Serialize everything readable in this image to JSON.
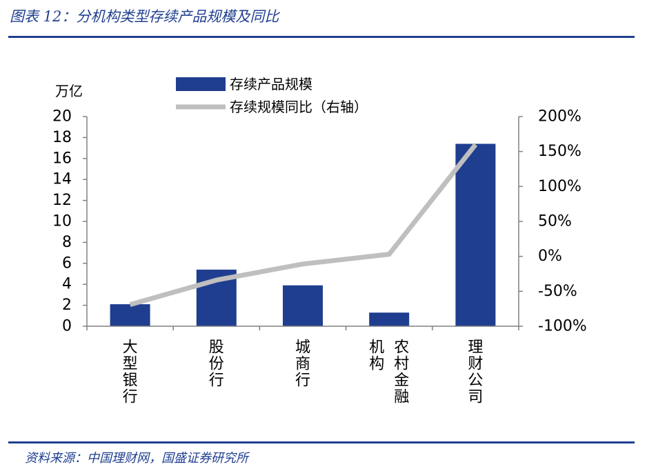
{
  "figure": {
    "title": "图表 12：分机构类型存续产品规模及同比",
    "source": "资料来源：中国理财网，国盛证券研究所"
  },
  "chart_data": {
    "type": "bar",
    "categories": [
      "大型银行",
      "股份行",
      "城商行",
      "农村金融机构",
      "理财公司"
    ],
    "category_label_columns": [
      [
        "大型银行"
      ],
      [
        "股份行"
      ],
      [
        "城商行"
      ],
      [
        "农村金融",
        "机构"
      ],
      [
        "理财公司"
      ]
    ],
    "series": [
      {
        "name": "存续产品规模",
        "type": "bar",
        "axis": "left",
        "color": "#1f3e8f",
        "values": [
          2.1,
          5.4,
          3.9,
          1.3,
          17.4
        ]
      },
      {
        "name": "存续规模同比（右轴）",
        "type": "line",
        "axis": "right",
        "color": "#bfbfbf",
        "values": [
          -69,
          -34,
          -11,
          3,
          160
        ],
        "unit": "%"
      }
    ],
    "y_left": {
      "unit": "万亿",
      "ylim": [
        0,
        20
      ],
      "ticks": [
        0,
        2,
        4,
        6,
        8,
        10,
        12,
        14,
        16,
        18,
        20
      ]
    },
    "y_right": {
      "ylim": [
        -100,
        200
      ],
      "ticks": [
        -100,
        -50,
        0,
        50,
        100,
        150,
        200
      ],
      "tick_labels": [
        "-100%",
        "-50%",
        "0%",
        "50%",
        "100%",
        "150%",
        "200%"
      ]
    },
    "grid": false,
    "legend": "top-center"
  }
}
